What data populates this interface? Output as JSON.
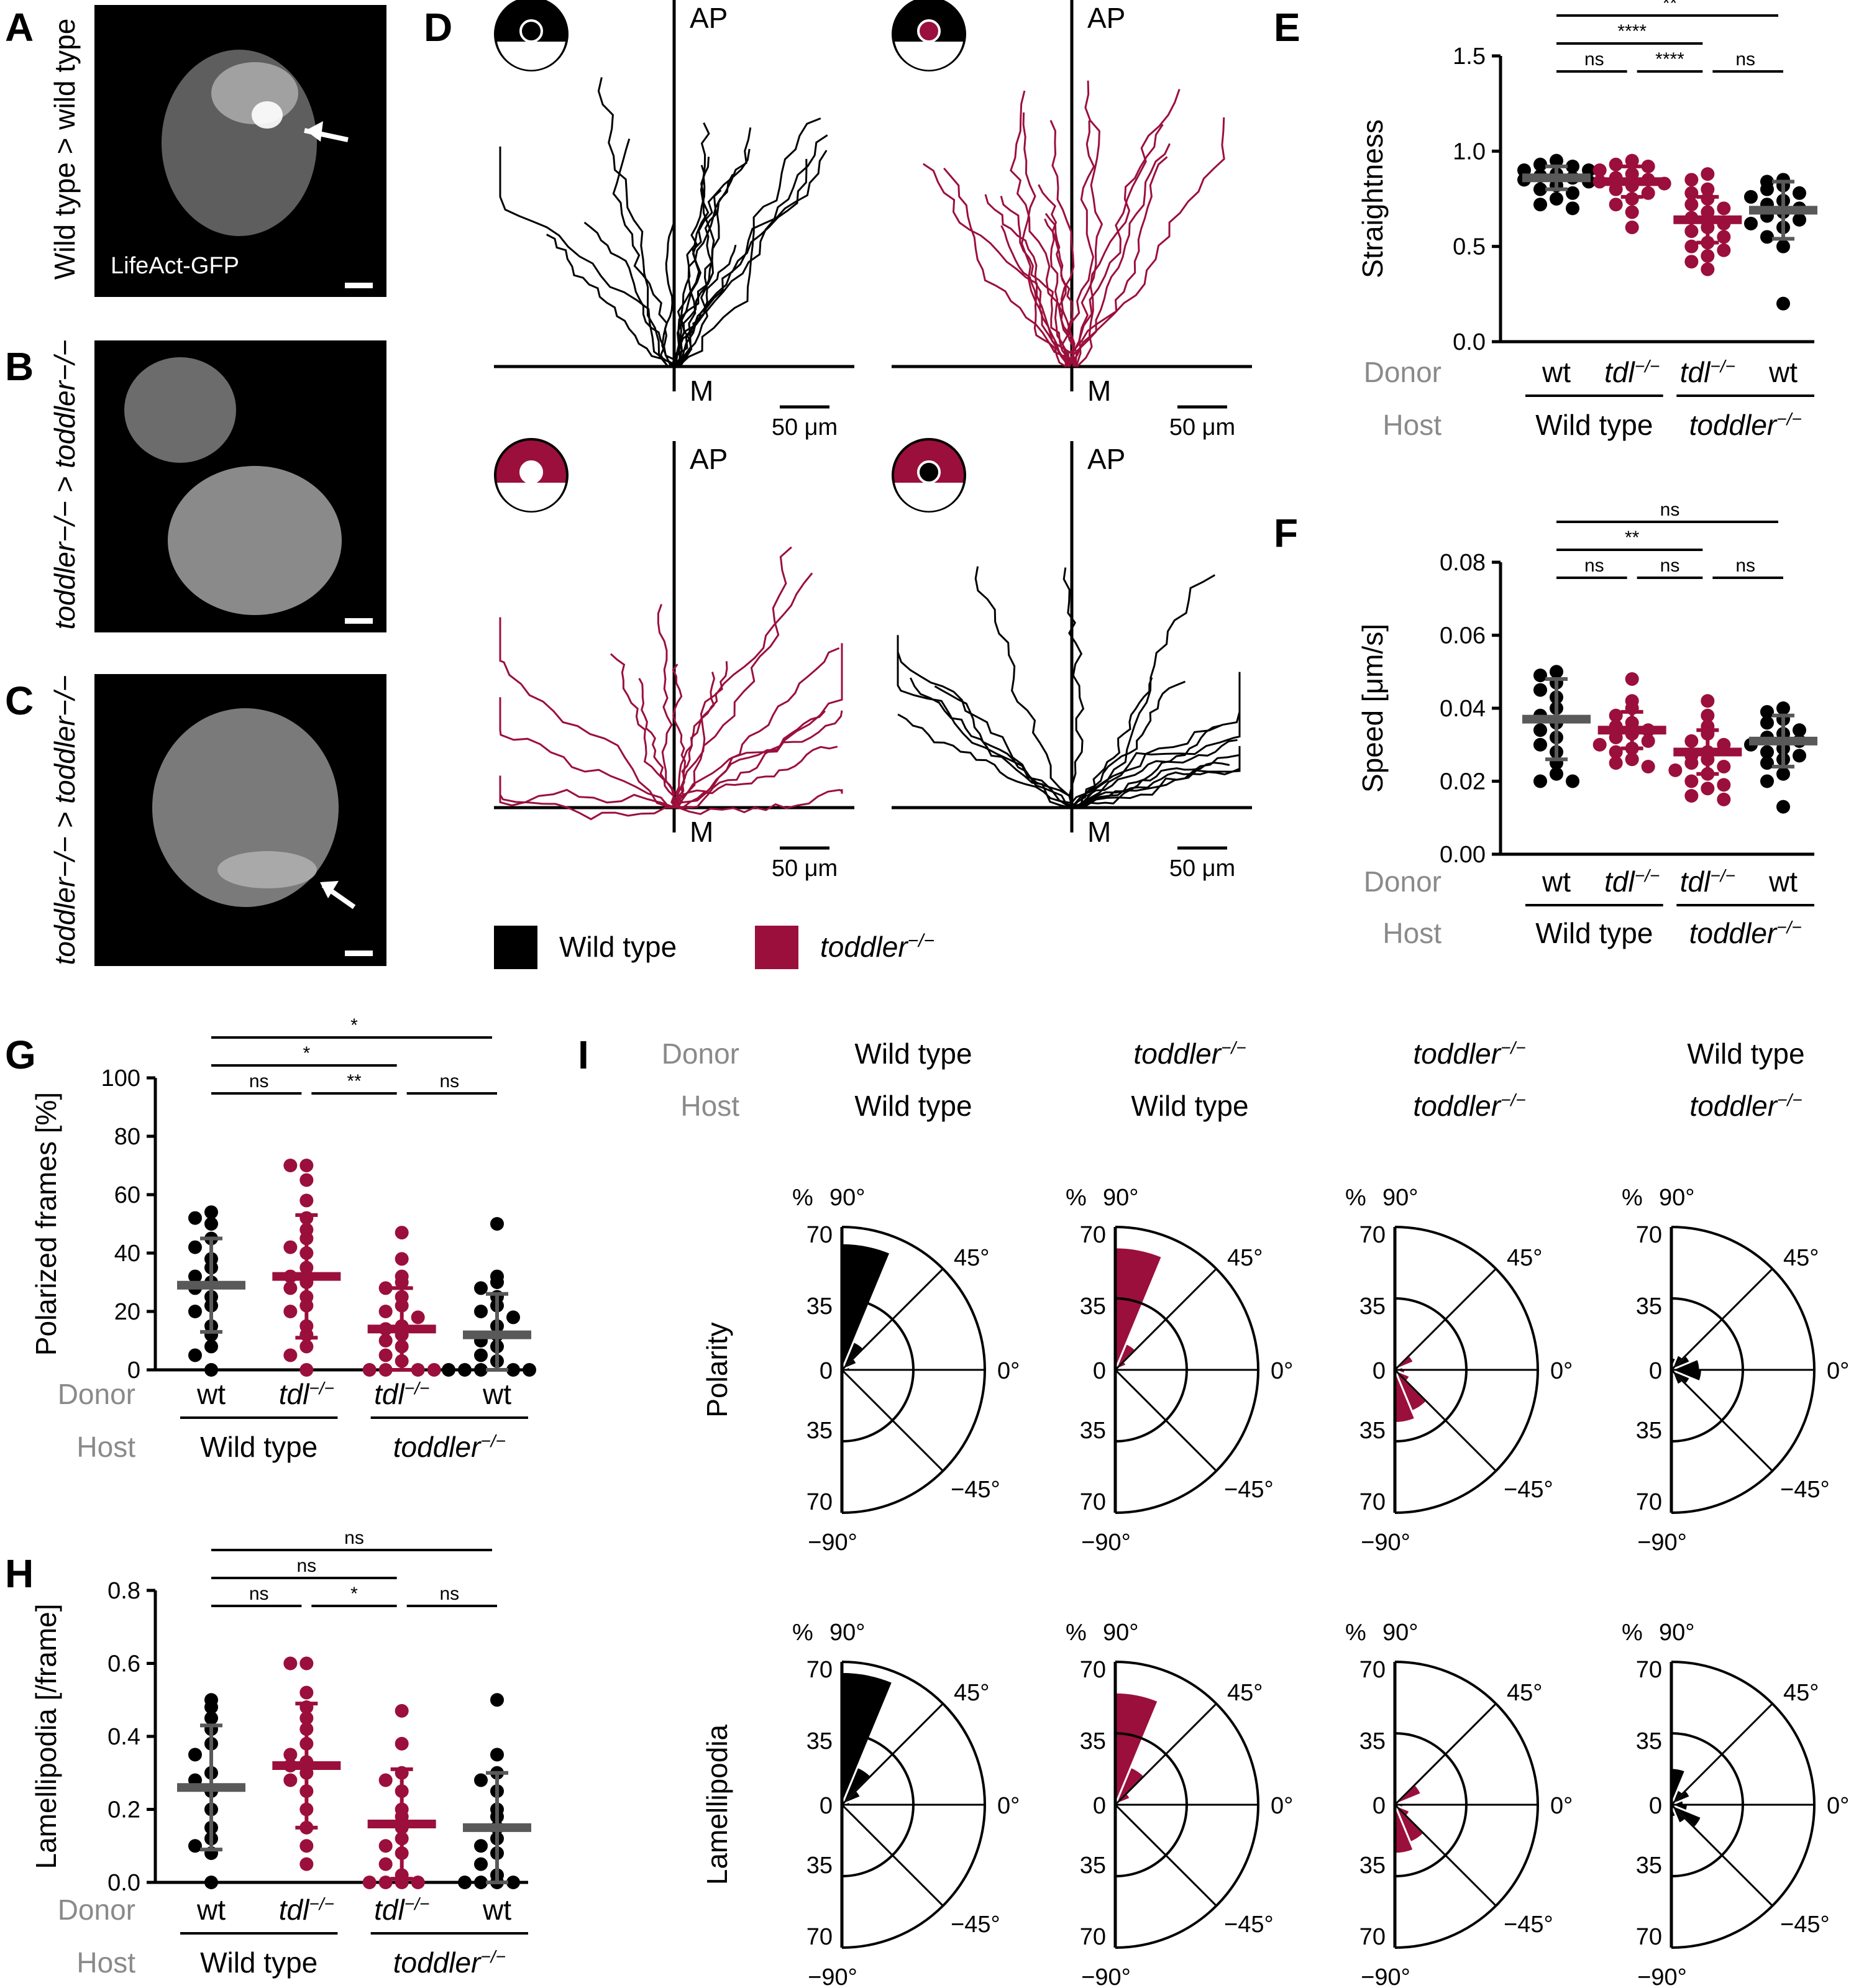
{
  "panel_labels": {
    "A": "A",
    "B": "B",
    "C": "C",
    "D": "D",
    "E": "E",
    "F": "F",
    "G": "G",
    "H": "H",
    "I": "I"
  },
  "colors": {
    "wild_type": "#000000",
    "toddler": "#9b0f3c",
    "mean_wt": "#595959",
    "gray_text": "#8a8a8a"
  },
  "images": {
    "A": {
      "side_label": "Wild type > wild type",
      "inner_label": "LifeAct-GFP"
    },
    "B": {
      "side_label": "toddler−/− > toddler−/−"
    },
    "C": {
      "side_label": "toddler−/− > toddler−/−"
    }
  },
  "tracks": {
    "axis_top": "AP",
    "axis_bottom": "M",
    "scale_bar": "50 μm",
    "legend": [
      {
        "label": "Wild type",
        "color": "#000000"
      },
      {
        "label": "toddler",
        "sup": "−/−",
        "color": "#9b0f3c"
      }
    ]
  },
  "group_labels": {
    "donor_row": "Donor",
    "host_row": "Host",
    "donors": [
      "wt",
      "tdl",
      "tdl",
      "wt"
    ],
    "donor_sup": "−/−",
    "hosts": [
      "Wild type",
      "toddler"
    ],
    "host_sup": "−/−"
  },
  "chart_data": [
    {
      "panel": "E",
      "type": "scatter",
      "ylabel": "Straightness",
      "ylim": [
        0,
        1.5
      ],
      "yticks": [
        "0.0",
        "0.5",
        "1.0",
        "1.5"
      ],
      "categories": [
        "wt > Wild type",
        "tdl−/− > Wild type",
        "tdl−/− > toddler−/−",
        "wt > toddler−/−"
      ],
      "means": [
        0.86,
        0.84,
        0.64,
        0.69
      ],
      "sd": [
        0.06,
        0.08,
        0.12,
        0.15
      ],
      "points": [
        [
          0.95,
          0.93,
          0.92,
          0.9,
          0.9,
          0.88,
          0.87,
          0.86,
          0.85,
          0.84,
          0.82,
          0.8,
          0.78,
          0.75,
          0.72,
          0.7
        ],
        [
          0.95,
          0.93,
          0.92,
          0.9,
          0.88,
          0.86,
          0.85,
          0.84,
          0.83,
          0.82,
          0.8,
          0.78,
          0.75,
          0.72,
          0.68,
          0.6
        ],
        [
          0.88,
          0.85,
          0.8,
          0.78,
          0.75,
          0.72,
          0.7,
          0.68,
          0.65,
          0.62,
          0.6,
          0.58,
          0.55,
          0.52,
          0.5,
          0.48,
          0.45,
          0.42,
          0.38
        ],
        [
          0.85,
          0.84,
          0.82,
          0.8,
          0.78,
          0.76,
          0.74,
          0.72,
          0.7,
          0.68,
          0.66,
          0.64,
          0.62,
          0.6,
          0.55,
          0.5,
          0.2
        ]
      ],
      "comparisons": [
        {
          "a": 0,
          "b": 3,
          "label": "**"
        },
        {
          "a": 0,
          "b": 2,
          "label": "****"
        },
        {
          "a": 0,
          "b": 1,
          "label": "ns"
        },
        {
          "a": 1,
          "b": 2,
          "label": "****"
        },
        {
          "a": 2,
          "b": 3,
          "label": "ns"
        }
      ]
    },
    {
      "panel": "F",
      "type": "scatter",
      "ylabel": "Speed [μm/s]",
      "ylim": [
        0,
        0.08
      ],
      "yticks": [
        "0.00",
        "0.02",
        "0.04",
        "0.06",
        "0.08"
      ],
      "categories": [
        "wt > Wild type",
        "tdl−/− > Wild type",
        "tdl−/− > toddler−/−",
        "wt > toddler−/−"
      ],
      "means": [
        0.037,
        0.034,
        0.028,
        0.031
      ],
      "sd": [
        0.011,
        0.005,
        0.006,
        0.007
      ],
      "points": [
        [
          0.05,
          0.049,
          0.047,
          0.045,
          0.043,
          0.04,
          0.038,
          0.036,
          0.034,
          0.032,
          0.03,
          0.028,
          0.025,
          0.022,
          0.02,
          0.02
        ],
        [
          0.048,
          0.042,
          0.04,
          0.038,
          0.036,
          0.035,
          0.034,
          0.033,
          0.032,
          0.031,
          0.03,
          0.029,
          0.028,
          0.026,
          0.025,
          0.024
        ],
        [
          0.042,
          0.038,
          0.035,
          0.033,
          0.031,
          0.03,
          0.028,
          0.027,
          0.026,
          0.025,
          0.024,
          0.023,
          0.022,
          0.02,
          0.019,
          0.018,
          0.016,
          0.015
        ],
        [
          0.04,
          0.039,
          0.037,
          0.036,
          0.034,
          0.033,
          0.032,
          0.031,
          0.03,
          0.029,
          0.028,
          0.027,
          0.026,
          0.025,
          0.022,
          0.02,
          0.013
        ]
      ],
      "comparisons": [
        {
          "a": 0,
          "b": 3,
          "label": "ns"
        },
        {
          "a": 0,
          "b": 2,
          "label": "**"
        },
        {
          "a": 0,
          "b": 1,
          "label": "ns"
        },
        {
          "a": 1,
          "b": 2,
          "label": "ns"
        },
        {
          "a": 2,
          "b": 3,
          "label": "ns"
        }
      ]
    },
    {
      "panel": "G",
      "type": "scatter",
      "ylabel": "Polarized frames [%]",
      "ylim": [
        0,
        100
      ],
      "yticks": [
        "0",
        "20",
        "40",
        "60",
        "80",
        "100"
      ],
      "categories": [
        "wt > Wild type",
        "tdl−/− > Wild type",
        "tdl−/− > toddler−/−",
        "wt > toddler−/−"
      ],
      "means": [
        29,
        32,
        14,
        12
      ],
      "sd": [
        16,
        21,
        14,
        14
      ],
      "points": [
        [
          54,
          52,
          50,
          45,
          42,
          38,
          35,
          32,
          30,
          28,
          25,
          22,
          20,
          15,
          12,
          8,
          5,
          0
        ],
        [
          70,
          70,
          65,
          58,
          52,
          48,
          45,
          42,
          40,
          35,
          32,
          30,
          28,
          25,
          22,
          20,
          15,
          12,
          8,
          5,
          0
        ],
        [
          47,
          38,
          32,
          30,
          28,
          25,
          22,
          20,
          18,
          15,
          14,
          12,
          10,
          8,
          5,
          3,
          0,
          0,
          0,
          0
        ],
        [
          50,
          32,
          30,
          28,
          25,
          22,
          20,
          18,
          15,
          12,
          10,
          8,
          5,
          3,
          0,
          0,
          0,
          0,
          0
        ]
      ],
      "comparisons": [
        {
          "a": 0,
          "b": 3,
          "label": "*"
        },
        {
          "a": 0,
          "b": 2,
          "label": "*"
        },
        {
          "a": 0,
          "b": 1,
          "label": "ns"
        },
        {
          "a": 1,
          "b": 2,
          "label": "**"
        },
        {
          "a": 2,
          "b": 3,
          "label": "ns"
        }
      ]
    },
    {
      "panel": "H",
      "type": "scatter",
      "ylabel": "Lamellipodia [/frame]",
      "ylim": [
        0,
        0.8
      ],
      "yticks": [
        "0.0",
        "0.2",
        "0.4",
        "0.6",
        "0.8"
      ],
      "categories": [
        "wt > Wild type",
        "tdl−/− > Wild type",
        "tdl−/− > toddler−/−",
        "wt > toddler−/−"
      ],
      "means": [
        0.26,
        0.32,
        0.16,
        0.15
      ],
      "sd": [
        0.17,
        0.17,
        0.15,
        0.15
      ],
      "points": [
        [
          0.5,
          0.48,
          0.45,
          0.42,
          0.38,
          0.35,
          0.3,
          0.28,
          0.25,
          0.2,
          0.15,
          0.12,
          0.1,
          0.08,
          0
        ],
        [
          0.6,
          0.6,
          0.52,
          0.48,
          0.45,
          0.42,
          0.38,
          0.35,
          0.33,
          0.32,
          0.3,
          0.28,
          0.25,
          0.2,
          0.15,
          0.1,
          0.05
        ],
        [
          0.47,
          0.38,
          0.3,
          0.28,
          0.25,
          0.2,
          0.18,
          0.15,
          0.12,
          0.1,
          0.08,
          0.05,
          0.02,
          0,
          0,
          0,
          0
        ],
        [
          0.5,
          0.35,
          0.3,
          0.28,
          0.25,
          0.2,
          0.18,
          0.15,
          0.12,
          0.1,
          0.08,
          0.05,
          0.02,
          0,
          0,
          0,
          0
        ]
      ],
      "comparisons": [
        {
          "a": 0,
          "b": 3,
          "label": "ns"
        },
        {
          "a": 0,
          "b": 2,
          "label": "ns"
        },
        {
          "a": 0,
          "b": 1,
          "label": "ns"
        },
        {
          "a": 1,
          "b": 2,
          "label": "*"
        },
        {
          "a": 2,
          "b": 3,
          "label": "ns"
        }
      ]
    }
  ],
  "rose": {
    "row_labels": [
      "Polarity",
      "Lamellipodia"
    ],
    "donor_label": "Donor",
    "host_label": "Host",
    "columns": [
      {
        "donor": "Wild type",
        "donor_it": false,
        "host": "Wild type",
        "host_it": false,
        "color": "#000000"
      },
      {
        "donor": "toddler",
        "donor_it": true,
        "host": "Wild type",
        "host_it": false,
        "color": "#9b0f3c"
      },
      {
        "donor": "toddler",
        "donor_it": true,
        "host": "toddler",
        "host_it": true,
        "color": "#9b0f3c"
      },
      {
        "donor": "Wild type",
        "donor_it": false,
        "host": "toddler",
        "host_it": true,
        "color": "#000000"
      }
    ],
    "sup": "−/−",
    "angle_labels": [
      "90°",
      "45°",
      "0°",
      "−45°",
      "−90°"
    ],
    "radial_labels": [
      "70",
      "35",
      "0",
      "35",
      "70"
    ],
    "percent_label": "%",
    "bins_deg": [
      -90,
      -67.5,
      -45,
      -22.5,
      0,
      22.5,
      45,
      67.5,
      90
    ],
    "polarity": [
      [
        0,
        0,
        0,
        2,
        4,
        8,
        15,
        62
      ],
      [
        0,
        0,
        0,
        2,
        3,
        6,
        14,
        60
      ],
      [
        26,
        22,
        8,
        5,
        4,
        10,
        0,
        0
      ],
      [
        4,
        8,
        10,
        15,
        14,
        10,
        8,
        6
      ]
    ],
    "lamellipodia": [
      [
        0,
        0,
        0,
        3,
        4,
        10,
        20,
        65
      ],
      [
        0,
        0,
        0,
        2,
        3,
        8,
        20,
        55
      ],
      [
        24,
        20,
        8,
        4,
        3,
        14,
        0,
        0
      ],
      [
        6,
        10,
        16,
        8,
        6,
        10,
        8,
        18
      ]
    ],
    "max_r": 70
  }
}
